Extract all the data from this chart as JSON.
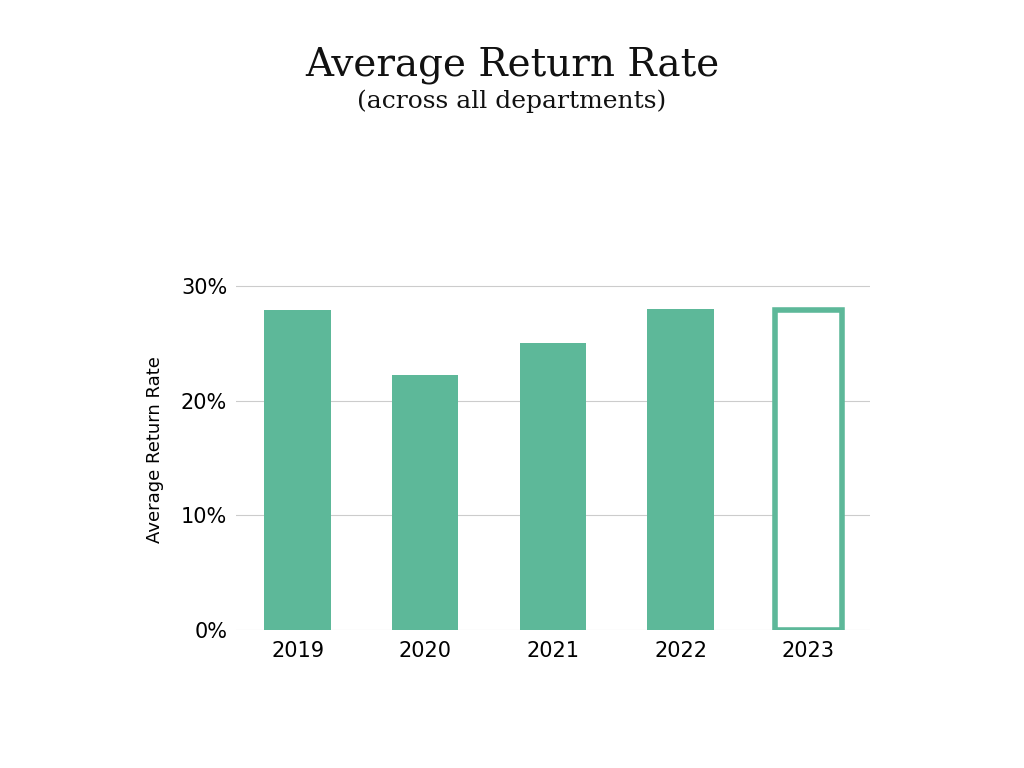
{
  "categories": [
    "2019",
    "2020",
    "2021",
    "2022",
    "2023"
  ],
  "values": [
    0.279,
    0.222,
    0.25,
    0.28,
    0.279
  ],
  "bar_color": "#5db899",
  "bar_color_outline": "#5db899",
  "title": "Average Return Rate",
  "subtitle": "(across all departments)",
  "ylabel": "Average Return Rate",
  "yticks": [
    0.0,
    0.1,
    0.2,
    0.3
  ],
  "ytick_labels": [
    "0%",
    "10%",
    "20%",
    "30%"
  ],
  "ylim": [
    0,
    0.315
  ],
  "background_color": "#ffffff",
  "title_fontsize": 28,
  "subtitle_fontsize": 18,
  "ylabel_fontsize": 13,
  "tick_fontsize": 15,
  "bar_width": 0.52,
  "grid_color": "#cccccc",
  "grid_linewidth": 0.8,
  "border_linewidth": 4.0
}
